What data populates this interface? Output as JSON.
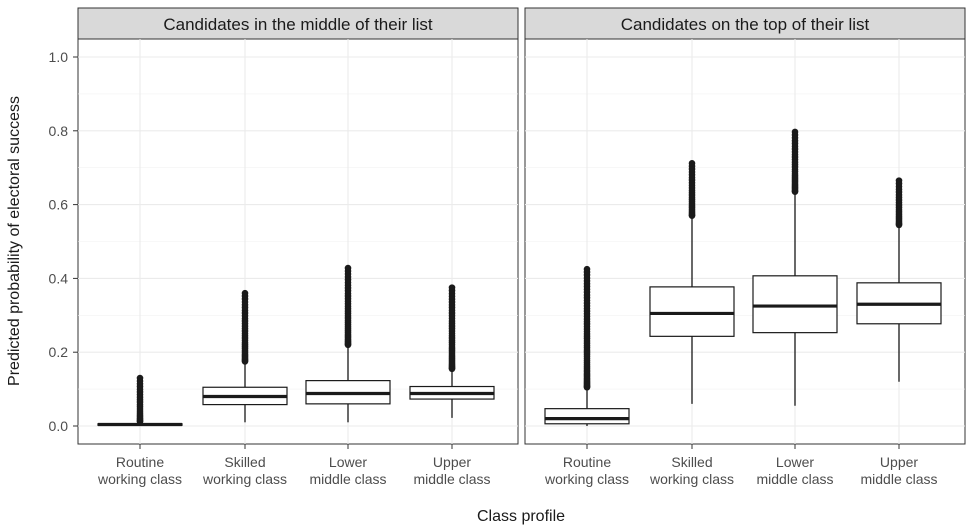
{
  "chart_data": {
    "type": "box",
    "xlabel": "Class profile",
    "ylabel": "Predicted probability of electoral success",
    "ylim": [
      0,
      1
    ],
    "yticks": [
      "0.0",
      "0.2",
      "0.4",
      "0.6",
      "0.8",
      "1.0"
    ],
    "ytick_values": [
      0,
      0.2,
      0.4,
      0.6,
      0.8,
      1.0
    ],
    "grid": true,
    "categories": [
      [
        "Routine",
        "working class"
      ],
      [
        "Skilled",
        "working class"
      ],
      [
        "Lower",
        "middle class"
      ],
      [
        "Upper",
        "middle class"
      ]
    ],
    "panels": [
      {
        "title": "Candidates in the middle of their list",
        "boxes": [
          {
            "whisker_low": 0.0,
            "q1": 0.002,
            "median": 0.004,
            "q3": 0.006,
            "whisker_high": 0.012,
            "outlier_min": 0.012,
            "outlier_max": 0.13
          },
          {
            "whisker_low": 0.01,
            "q1": 0.058,
            "median": 0.08,
            "q3": 0.105,
            "whisker_high": 0.175,
            "outlier_min": 0.175,
            "outlier_max": 0.36
          },
          {
            "whisker_low": 0.01,
            "q1": 0.06,
            "median": 0.088,
            "q3": 0.123,
            "whisker_high": 0.22,
            "outlier_min": 0.22,
            "outlier_max": 0.428
          },
          {
            "whisker_low": 0.022,
            "q1": 0.073,
            "median": 0.088,
            "q3": 0.107,
            "whisker_high": 0.155,
            "outlier_min": 0.155,
            "outlier_max": 0.375
          }
        ]
      },
      {
        "title": "Candidates on the top of their list",
        "boxes": [
          {
            "whisker_low": 0.0,
            "q1": 0.006,
            "median": 0.02,
            "q3": 0.047,
            "whisker_high": 0.105,
            "outlier_min": 0.105,
            "outlier_max": 0.425
          },
          {
            "whisker_low": 0.06,
            "q1": 0.243,
            "median": 0.305,
            "q3": 0.377,
            "whisker_high": 0.57,
            "outlier_min": 0.57,
            "outlier_max": 0.712
          },
          {
            "whisker_low": 0.055,
            "q1": 0.253,
            "median": 0.325,
            "q3": 0.407,
            "whisker_high": 0.635,
            "outlier_min": 0.635,
            "outlier_max": 0.797
          },
          {
            "whisker_low": 0.12,
            "q1": 0.277,
            "median": 0.33,
            "q3": 0.388,
            "whisker_high": 0.545,
            "outlier_min": 0.545,
            "outlier_max": 0.665
          }
        ]
      }
    ]
  }
}
